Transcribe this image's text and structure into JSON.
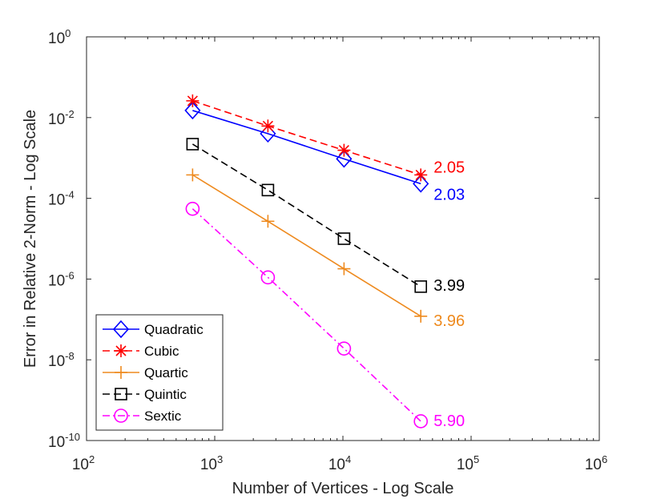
{
  "chart_data": {
    "type": "line",
    "title": "",
    "xlabel": "Number of Vertices - Log Scale",
    "ylabel": "Error in Relative 2-Norm - Log Scale",
    "xscale": "log",
    "yscale": "log",
    "xlim_exp": [
      2,
      6
    ],
    "ylim_exp": [
      -10,
      0
    ],
    "xticks": [
      {
        "base": "10",
        "exp": "2",
        "value_exp": 2
      },
      {
        "base": "10",
        "exp": "3",
        "value_exp": 3
      },
      {
        "base": "10",
        "exp": "4",
        "value_exp": 4
      },
      {
        "base": "10",
        "exp": "5",
        "value_exp": 5
      },
      {
        "base": "10",
        "exp": "6",
        "value_exp": 6
      }
    ],
    "yticks": [
      {
        "base": "10",
        "exp": "0",
        "value_exp": 0
      },
      {
        "base": "10",
        "exp": "-2",
        "value_exp": -2
      },
      {
        "base": "10",
        "exp": "-4",
        "value_exp": -4
      },
      {
        "base": "10",
        "exp": "-6",
        "value_exp": -6
      },
      {
        "base": "10",
        "exp": "-8",
        "value_exp": -8
      },
      {
        "base": "10",
        "exp": "-10",
        "value_exp": -10
      }
    ],
    "x": [
      672,
      2600,
      10200,
      40500
    ],
    "series": [
      {
        "name": "Quadratic",
        "color": "#0000ff",
        "marker": "diamond",
        "dash": "solid",
        "values": [
          0.015,
          0.004,
          0.00095,
          0.00023
        ],
        "rate_label": "2.03"
      },
      {
        "name": "Cubic",
        "color": "#ff0000",
        "marker": "asterisk",
        "dash": "dashed",
        "values": [
          0.026,
          0.0062,
          0.00155,
          0.00038
        ],
        "rate_label": "2.05"
      },
      {
        "name": "Quartic",
        "color": "#ee8a1e",
        "marker": "plus",
        "dash": "solid",
        "values": [
          0.00038,
          2.7e-05,
          1.8e-06,
          1.2e-07
        ],
        "rate_label": "3.96"
      },
      {
        "name": "Quintic",
        "color": "#000000",
        "marker": "square",
        "dash": "dashed",
        "values": [
          0.0022,
          0.00016,
          1e-05,
          6.5e-07
        ],
        "rate_label": "3.99"
      },
      {
        "name": "Sextic",
        "color": "#ff00ff",
        "marker": "circle",
        "dash": "dashdot",
        "values": [
          5.5e-05,
          1.1e-06,
          1.9e-08,
          3e-10
        ],
        "rate_label": "5.90"
      }
    ],
    "legend_position": "bottom-left",
    "grid": false
  }
}
